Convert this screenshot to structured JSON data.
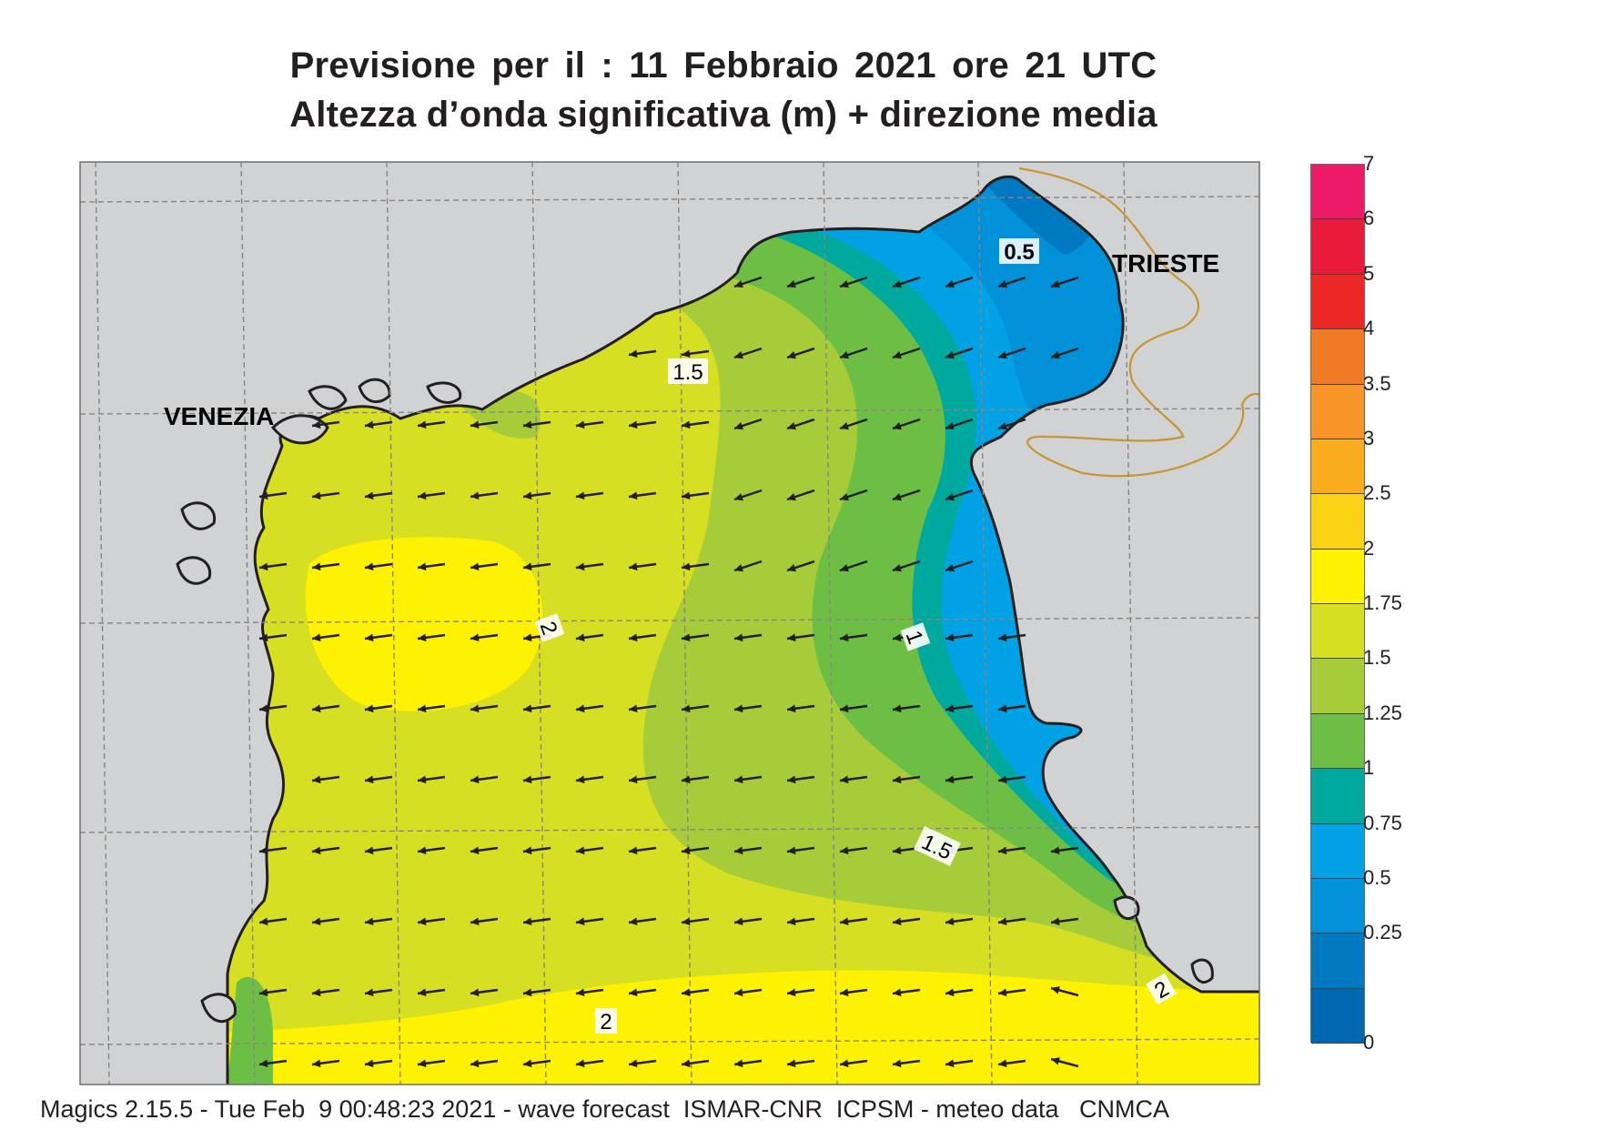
{
  "title": {
    "line1": "Previsione per il  :  11  Febbraio 2021   ore 21 UTC",
    "line2": "Altezza d’onda significativa (m) + direzione media"
  },
  "places": {
    "venezia": "VENEZIA",
    "trieste": "TRIESTE"
  },
  "contour_labels": [
    "0.5",
    "1.5",
    "2",
    "1",
    "1.5",
    "2",
    "2"
  ],
  "legend": {
    "items": [
      {
        "label": "7",
        "color": "#ec1a69"
      },
      {
        "label": "6",
        "color": "#e91a3a"
      },
      {
        "label": "5",
        "color": "#ed2626"
      },
      {
        "label": "4",
        "color": "#f07a25"
      },
      {
        "label": "3.5",
        "color": "#f79428"
      },
      {
        "label": "3",
        "color": "#f9ad1d"
      },
      {
        "label": "2.5",
        "color": "#fbd113"
      },
      {
        "label": "2",
        "color": "#fff200"
      },
      {
        "label": "1.75",
        "color": "#d7df23"
      },
      {
        "label": "1.5",
        "color": "#a6cd39"
      },
      {
        "label": "1.25",
        "color": "#6cbe45"
      },
      {
        "label": "1",
        "color": "#00a99d"
      },
      {
        "label": "0.75",
        "color": "#00a2e5"
      },
      {
        "label": "0.5",
        "color": "#0091d8"
      },
      {
        "label": "0.25",
        "color": "#0079c1"
      },
      {
        "label": "0",
        "color": "#0067b1"
      }
    ]
  },
  "colors": {
    "land": "#d0d2d3",
    "coast": "#231f20",
    "border": "#c8952e",
    "arrow": "#231f20"
  },
  "footer": "Magics 2.15.5 - Tue Feb  9 00:48:23 2021 - wave forecast  ISMAR-CNR  ICPSM - meteo data   CNMCA"
}
